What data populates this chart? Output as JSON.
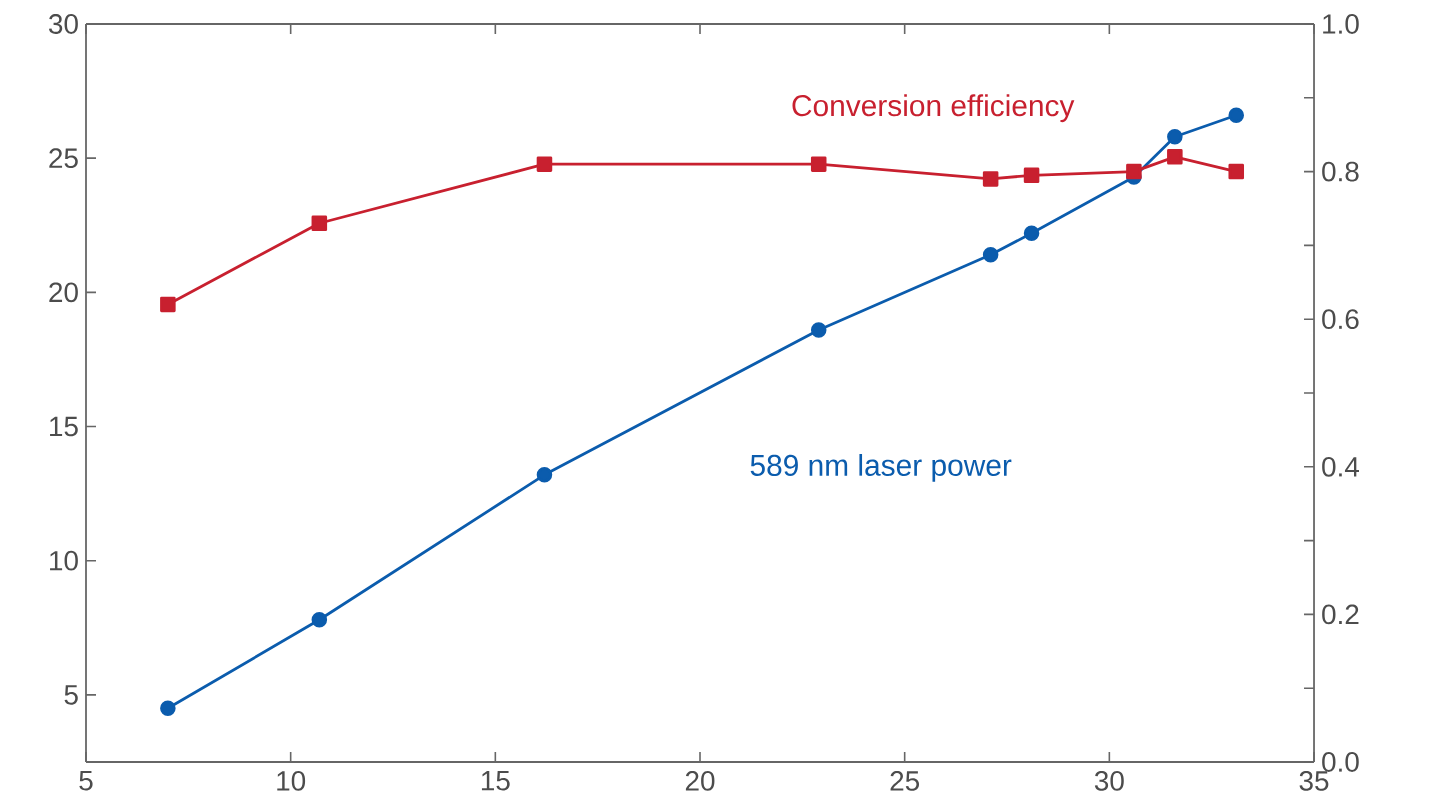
{
  "chart_data": {
    "type": "line",
    "x": [
      7.0,
      10.7,
      16.2,
      22.9,
      27.1,
      28.1,
      30.6,
      31.6,
      33.1
    ],
    "series": [
      {
        "name": "589 nm laser power",
        "color": "#0b5cad",
        "marker": "circle",
        "values": [
          4.5,
          7.8,
          13.2,
          18.6,
          21.4,
          22.2,
          24.3,
          25.8,
          26.6
        ]
      },
      {
        "name": "Conversion efficiency",
        "color": "#c8202f",
        "marker": "square",
        "axis": "y2",
        "values": [
          0.62,
          0.73,
          0.81,
          0.81,
          0.79,
          0.795,
          0.8,
          0.82,
          0.8
        ]
      }
    ],
    "xlim": [
      5,
      35
    ],
    "xticks": [
      5,
      10,
      15,
      20,
      25,
      30,
      35
    ],
    "ylim": [
      2.5,
      30
    ],
    "yticks": [
      5,
      10,
      15,
      20,
      25,
      30
    ],
    "y2lim": [
      0,
      1
    ],
    "y2ticks": [
      {
        "value": 0,
        "label": "0.0"
      },
      {
        "value": 0.1,
        "label": null
      },
      0.2,
      {
        "value": 0.3,
        "label": null
      },
      0.4,
      {
        "value": 0.5,
        "label": null
      },
      0.6,
      {
        "value": 0.7,
        "label": null
      },
      0.8,
      {
        "value": 0.9,
        "label": null
      },
      {
        "value": 1,
        "label": "1.0"
      }
    ],
    "line_style": "solid"
  }
}
